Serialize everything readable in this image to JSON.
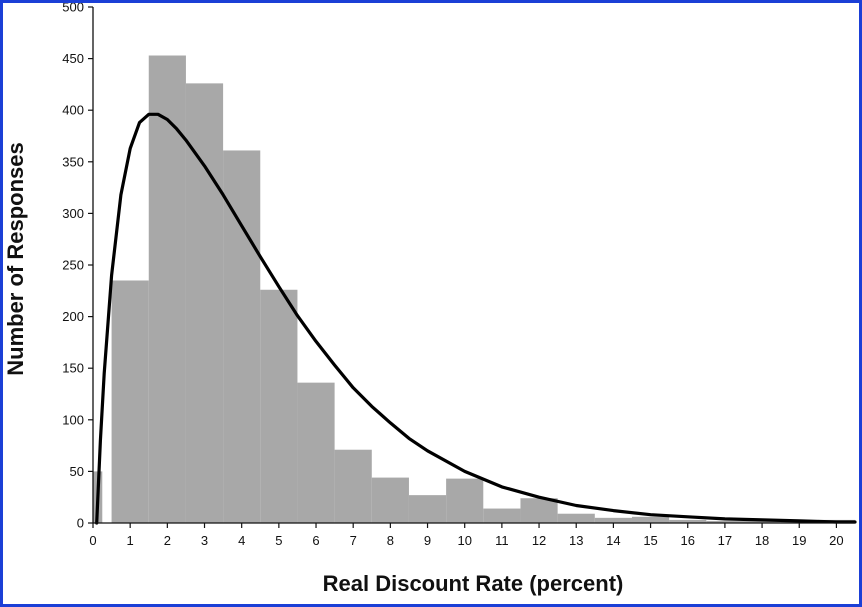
{
  "chart_data": {
    "type": "bar",
    "title": "",
    "xlabel": "Real Discount Rate (percent)",
    "ylabel": "Number of Responses",
    "xlim": [
      0,
      20.5
    ],
    "ylim": [
      0,
      500
    ],
    "x_ticks": [
      "0",
      "1",
      "2",
      "3",
      "4",
      "5",
      "6",
      "7",
      "8",
      "9",
      "10",
      "11",
      "12",
      "13",
      "14",
      "15",
      "16",
      "17",
      "18",
      "19",
      "20"
    ],
    "y_ticks": [
      "0",
      "50",
      "100",
      "150",
      "200",
      "250",
      "300",
      "350",
      "400",
      "450",
      "500"
    ],
    "bar_color": "#a8a8a8",
    "curve_color": "#000000",
    "bin_width": 1,
    "bins": [
      {
        "start": 0.0,
        "end": 0.25,
        "value": 50
      },
      {
        "start": 0.25,
        "end": 0.5,
        "value": 0
      },
      {
        "start": 0.5,
        "end": 1.5,
        "value": 235
      },
      {
        "start": 1.5,
        "end": 2.5,
        "value": 453
      },
      {
        "start": 2.5,
        "end": 3.5,
        "value": 426
      },
      {
        "start": 3.5,
        "end": 4.5,
        "value": 361
      },
      {
        "start": 4.5,
        "end": 5.5,
        "value": 226
      },
      {
        "start": 5.5,
        "end": 6.5,
        "value": 136
      },
      {
        "start": 6.5,
        "end": 7.5,
        "value": 71
      },
      {
        "start": 7.5,
        "end": 8.5,
        "value": 44
      },
      {
        "start": 8.5,
        "end": 9.5,
        "value": 27
      },
      {
        "start": 9.5,
        "end": 10.5,
        "value": 43
      },
      {
        "start": 10.5,
        "end": 11.5,
        "value": 14
      },
      {
        "start": 11.5,
        "end": 12.5,
        "value": 24
      },
      {
        "start": 12.5,
        "end": 13.5,
        "value": 9
      },
      {
        "start": 13.5,
        "end": 14.5,
        "value": 5
      },
      {
        "start": 14.5,
        "end": 15.5,
        "value": 6
      },
      {
        "start": 15.5,
        "end": 16.5,
        "value": 3
      },
      {
        "start": 16.5,
        "end": 17.5,
        "value": 2
      },
      {
        "start": 17.5,
        "end": 18.5,
        "value": 2
      },
      {
        "start": 18.5,
        "end": 19.5,
        "value": 2
      },
      {
        "start": 19.5,
        "end": 20.5,
        "value": 3
      }
    ],
    "fit_curve": {
      "type": "line",
      "x": [
        0.1,
        0.2,
        0.3,
        0.5,
        0.75,
        1.0,
        1.25,
        1.5,
        1.75,
        2.0,
        2.25,
        2.5,
        3.0,
        3.5,
        4.0,
        4.5,
        5.0,
        5.5,
        6.0,
        6.5,
        7.0,
        7.5,
        8.0,
        8.5,
        9.0,
        10.0,
        11.0,
        12.0,
        13.0,
        14.0,
        15.0,
        16.0,
        17.0,
        18.0,
        19.0,
        20.0,
        20.5
      ],
      "y": [
        0,
        80,
        145,
        240,
        318,
        363,
        388,
        396,
        396,
        391,
        382,
        371,
        346,
        318,
        288,
        258,
        229,
        201,
        176,
        153,
        131,
        113,
        97,
        82,
        70,
        50,
        35,
        25,
        17,
        12,
        8,
        6,
        4,
        3,
        2,
        1,
        1
      ]
    }
  }
}
